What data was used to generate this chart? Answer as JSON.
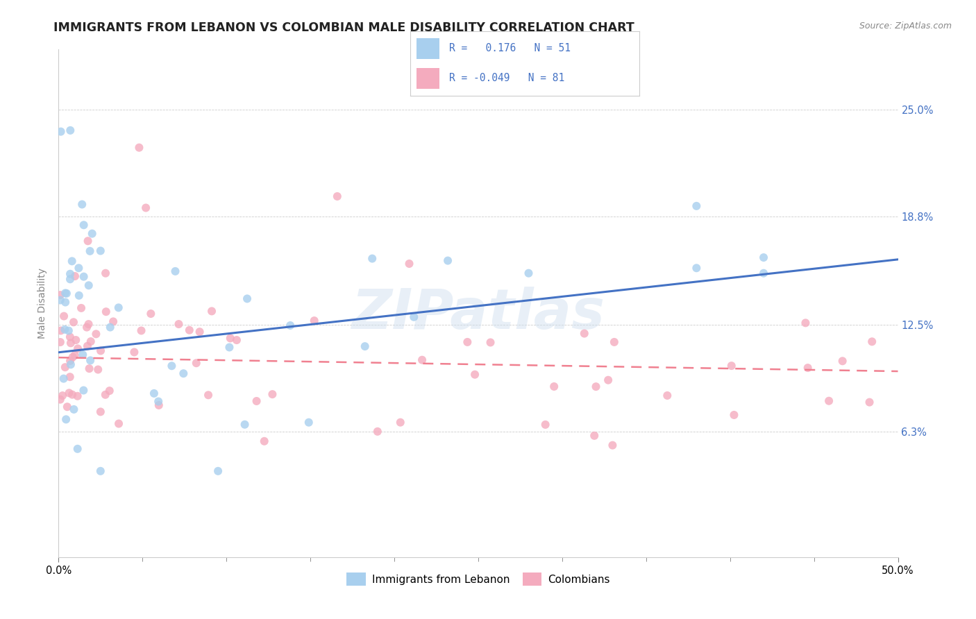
{
  "title": "IMMIGRANTS FROM LEBANON VS COLOMBIAN MALE DISABILITY CORRELATION CHART",
  "source": "Source: ZipAtlas.com",
  "ylabel": "Male Disability",
  "yticks": [
    0.063,
    0.125,
    0.188,
    0.25
  ],
  "ytick_labels": [
    "6.3%",
    "12.5%",
    "18.8%",
    "25.0%"
  ],
  "xmin": 0.0,
  "xmax": 0.5,
  "ymin": -0.01,
  "ymax": 0.285,
  "watermark": "ZIPatlas",
  "blue_color": "#A8CFEE",
  "pink_color": "#F4ABBE",
  "blue_line_color": "#4472C4",
  "pink_line_color": "#F08090",
  "title_fontsize": 12.5,
  "source_fontsize": 9,
  "axis_label_fontsize": 10,
  "tick_fontsize": 10.5,
  "legend_fontsize": 10.5,
  "n_lebanon": 51,
  "n_colombian": 81,
  "blue_line_start_y": 0.109,
  "blue_line_end_y": 0.163,
  "pink_line_start_y": 0.106,
  "pink_line_end_y": 0.098
}
